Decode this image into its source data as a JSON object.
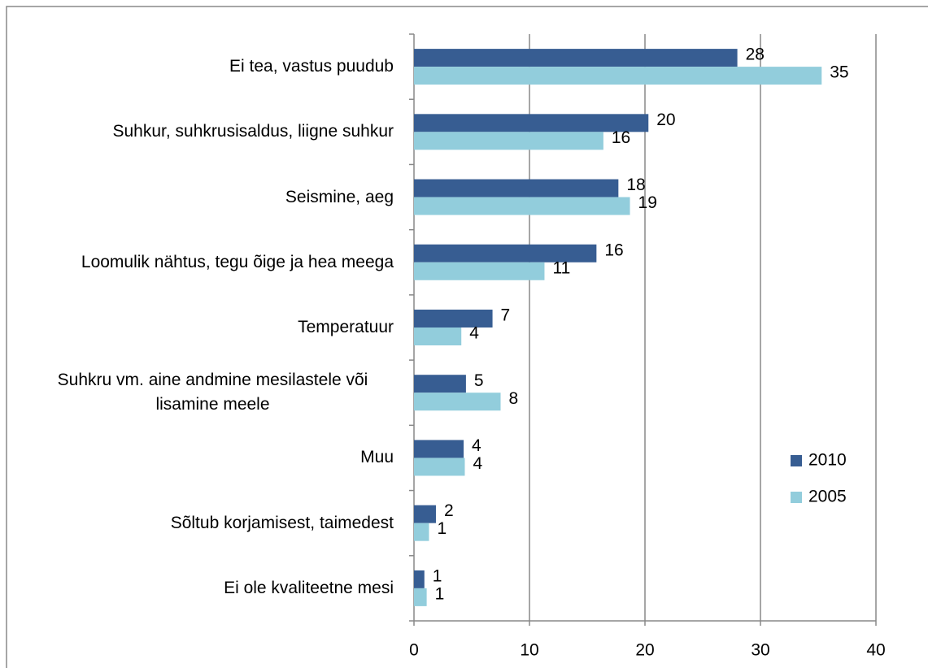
{
  "chart_data": {
    "type": "bar",
    "orientation": "horizontal",
    "categories": [
      "Ei tea, vastus puudub",
      "Suhkur, suhkrusisaldus, liigne suhkur",
      "Seismine, aeg",
      "Loomulik nähtus, tegu õige ja hea meega",
      "Temperatuur",
      "Suhkru vm. aine andmine mesilastele või lisamine meele",
      "Muu",
      "Sõltub korjamisest, taimedest",
      "Ei ole kvaliteetne mesi"
    ],
    "series": [
      {
        "name": "2010",
        "color": "#375d92",
        "values": [
          28.0,
          20.3,
          17.7,
          15.8,
          6.8,
          4.5,
          4.3,
          1.9,
          0.9
        ],
        "value_labels": [
          "28",
          "20",
          "18",
          "16",
          "7",
          "5",
          "4",
          "2",
          "1"
        ]
      },
      {
        "name": "2005",
        "color": "#92cddc",
        "values": [
          35.3,
          16.4,
          18.7,
          11.3,
          4.1,
          7.5,
          4.4,
          1.3,
          1.1
        ],
        "value_labels": [
          "35",
          "16",
          "19",
          "11",
          "4",
          "8",
          "4",
          "1",
          "1"
        ]
      }
    ],
    "xlim": [
      0,
      40
    ],
    "xticks": [
      0,
      10,
      20,
      30,
      40
    ],
    "grid": true,
    "legend": "right"
  }
}
